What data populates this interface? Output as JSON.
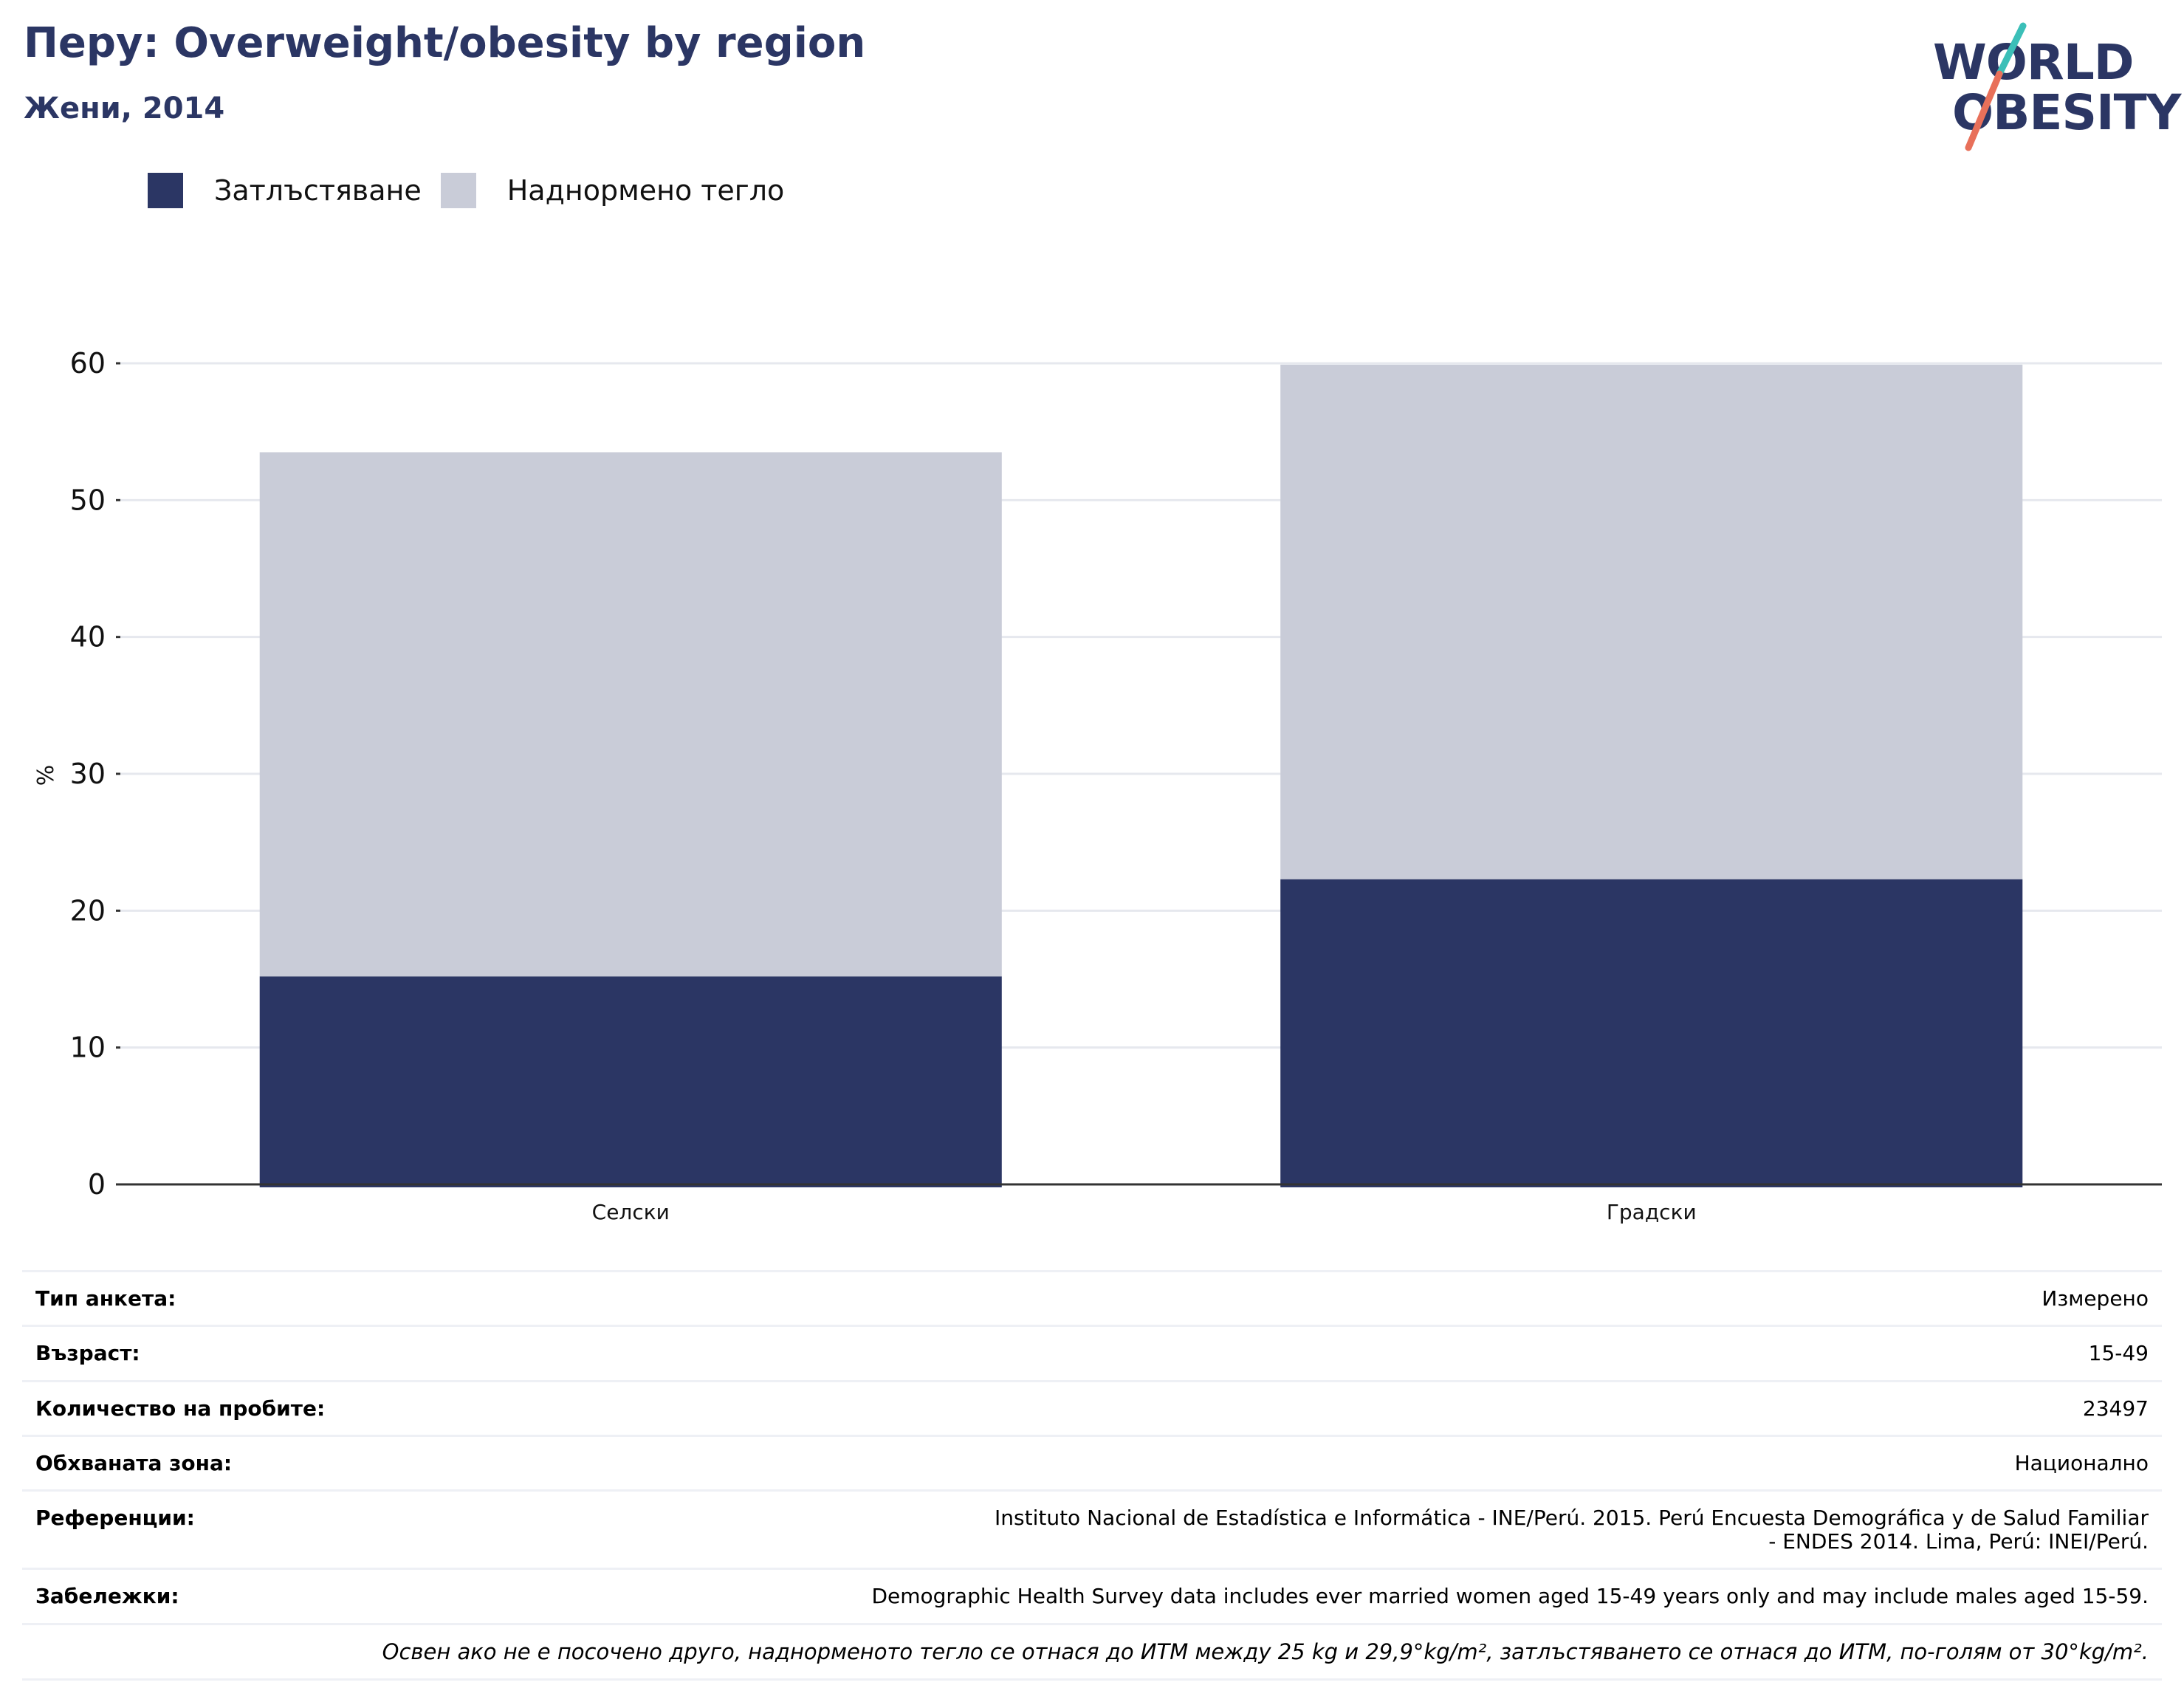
{
  "header": {
    "title": "Перу: Overweight/obesity by region",
    "subtitle": "Жени, 2014"
  },
  "logo": {
    "line1": "WORLD",
    "line2": "OBESITY",
    "colors": {
      "text": "#2b3664",
      "slash_top": "#3bbfb8",
      "slash_bottom": "#e8705a"
    }
  },
  "colors": {
    "obesity": "#2b3664",
    "overweight": "#c9ccd8",
    "grid": "#e6e8ee",
    "axis": "#333333"
  },
  "chart_data": {
    "type": "bar",
    "stacked": true,
    "categories": [
      "Селски",
      "Градски"
    ],
    "series": [
      {
        "name": "Затлъстяване",
        "values": [
          15.2,
          22.3
        ]
      },
      {
        "name": "Наднормено тегло",
        "values": [
          38.3,
          37.6
        ]
      }
    ],
    "ylabel": "%",
    "xlabel": "",
    "ylim": [
      0,
      60
    ],
    "yticks": [
      0,
      10,
      20,
      30,
      40,
      50,
      60
    ],
    "grid": true,
    "legend": "top-left"
  },
  "info": [
    {
      "key": "Тип анкета:",
      "value": "Измерено"
    },
    {
      "key": "Възраст:",
      "value": "15-49"
    },
    {
      "key": "Количество на пробите:",
      "value": "23497"
    },
    {
      "key": "Обхваната зона:",
      "value": "Национално"
    },
    {
      "key": "Референции:",
      "value": "Instituto Nacional de Estadística e Informática - INE/Perú. 2015. Perú Encuesta Demográfica y de Salud Familiar - ENDES 2014. Lima, Perú: INEI/Perú."
    },
    {
      "key": "Забележки:",
      "value": "Demographic Health Survey data includes ever married women aged 15-49 years only and may include males aged 15-59."
    }
  ],
  "footnote": "Освен ако не е посочено друго, наднорменото тегло се отнася до ИТМ между 25 kg и 29,9°kg/m², затлъстяването се отнася до ИТМ, по-голям от 30°kg/m²."
}
